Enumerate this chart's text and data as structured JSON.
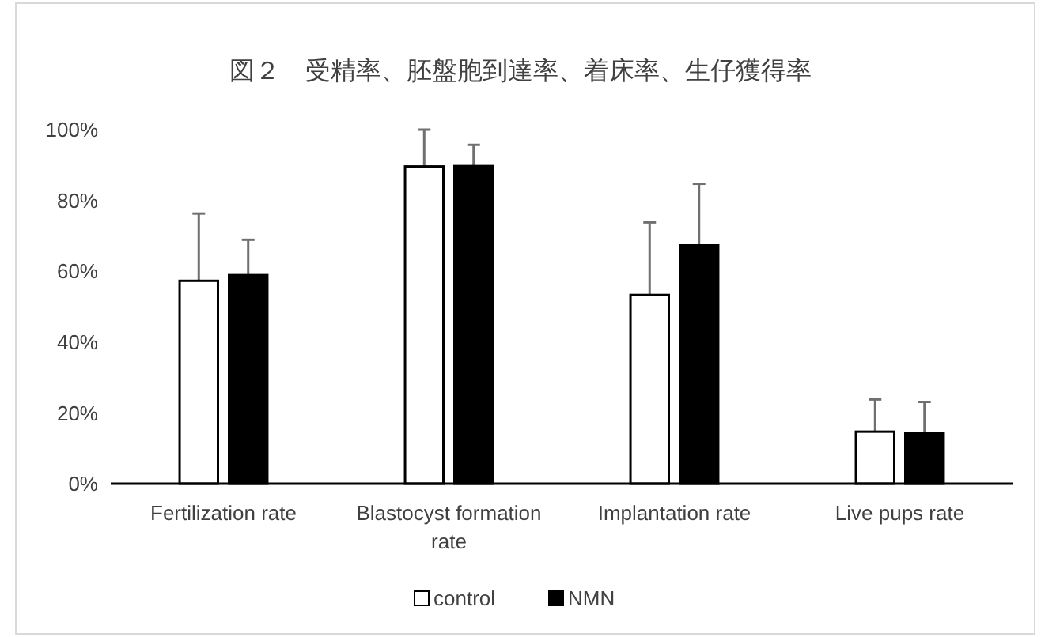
{
  "chart_data": {
    "type": "bar",
    "title": "図２　受精率、胚盤胞到達率、着床率、生仔獲得率",
    "categories": [
      "Fertilization rate",
      "Blastocyst formation rate",
      "Implantation rate",
      "Live pups rate"
    ],
    "series": [
      {
        "name": "control",
        "color": "#ffffff",
        "values": [
          57.3,
          89.6,
          53.3,
          14.7
        ],
        "errors": [
          19,
          10.4,
          20.5,
          9.1
        ]
      },
      {
        "name": "NMN",
        "color": "#000000",
        "values": [
          58.9,
          89.7,
          67.3,
          14.3
        ],
        "errors": [
          10,
          6,
          17.4,
          8.8
        ]
      }
    ],
    "ylim": [
      0,
      100
    ],
    "yticks": [
      {
        "value": 0,
        "label": "0%"
      },
      {
        "value": 20,
        "label": "20%"
      },
      {
        "value": 40,
        "label": "40%"
      },
      {
        "value": 60,
        "label": "60%"
      },
      {
        "value": 80,
        "label": "80%"
      },
      {
        "value": 100,
        "label": "100%"
      }
    ],
    "grid": false,
    "legend": "bottom"
  }
}
